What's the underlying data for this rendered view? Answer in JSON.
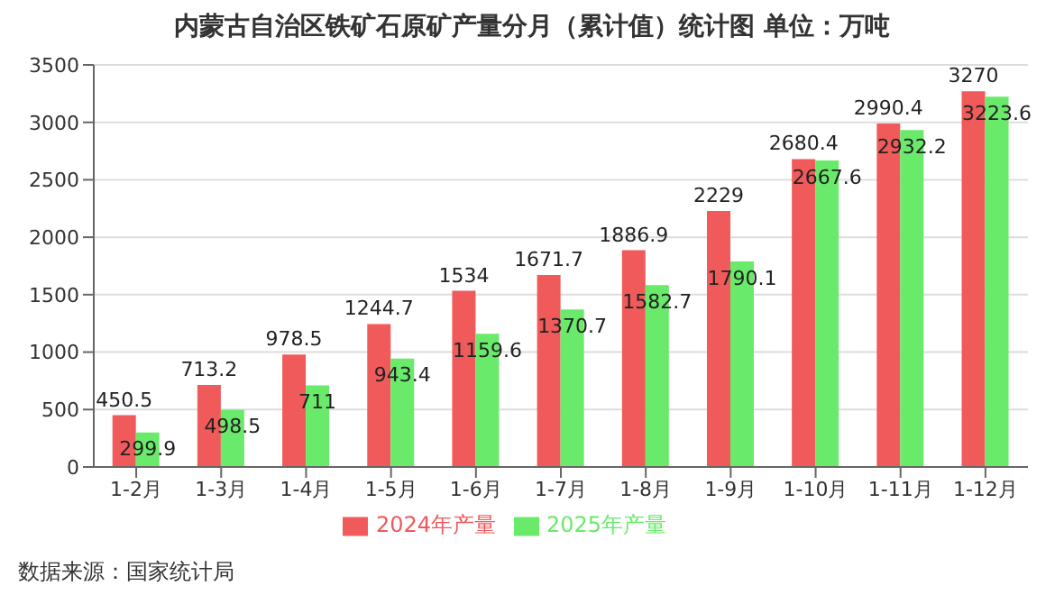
{
  "chart_data": {
    "type": "bar",
    "title": "内蒙古自治区铁矿石原矿产量分月（累计值）统计图  单位：万吨",
    "categories": [
      "1-2月",
      "1-3月",
      "1-4月",
      "1-5月",
      "1-6月",
      "1-7月",
      "1-8月",
      "1-9月",
      "1-10月",
      "1-11月",
      "1-12月"
    ],
    "series": [
      {
        "name": "2024年产量",
        "color": "#f05a5a",
        "values": [
          450.5,
          713.2,
          978.5,
          1244.7,
          1534,
          1671.7,
          1886.9,
          2229,
          2680.4,
          2990.4,
          3270
        ]
      },
      {
        "name": "2025年产量",
        "color": "#6aea6a",
        "values": [
          299.9,
          498.5,
          711,
          943.4,
          1159.6,
          1370.7,
          1582.7,
          1790.1,
          2667.6,
          2932.2,
          3223.6
        ]
      }
    ],
    "ylim": [
      0,
      3500
    ],
    "yticks": [
      0,
      500,
      1000,
      1500,
      2000,
      2500,
      3000,
      3500
    ],
    "grid": "y",
    "legend": "bottom",
    "data_labels": true,
    "annotations": [
      "数据来源：国家统计局"
    ]
  }
}
